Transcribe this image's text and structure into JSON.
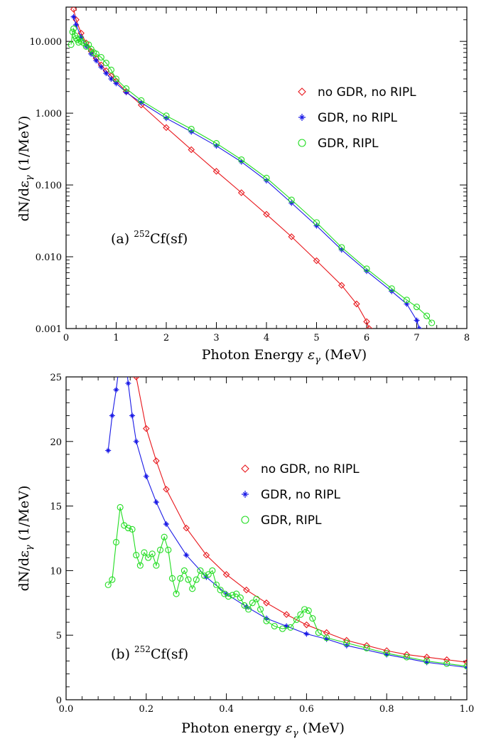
{
  "figure": {
    "panels": [
      {
        "id": "a",
        "label": "(a) ",
        "label_sup": "252",
        "label_suffix": "Cf(sf)",
        "xlabel_main": "Photon Energy ",
        "xlabel_sym": "ε",
        "xlabel_sub": "γ",
        "xlabel_unit": " (MeV)",
        "ylabel_main": "dN/dε",
        "ylabel_sub": "γ",
        "ylabel_unit": " (1/MeV)"
      },
      {
        "id": "b",
        "label": "(b) ",
        "label_sup": "252",
        "label_suffix": "Cf(sf)",
        "xlabel_main": "Photon energy ",
        "xlabel_sym": "ε",
        "xlabel_sub": "γ",
        "xlabel_unit": " (MeV)",
        "ylabel_main": "dN/dε",
        "ylabel_sub": "γ",
        "ylabel_unit": " (1/MeV)"
      }
    ]
  },
  "chart_data": [
    {
      "type": "line",
      "panel": "a",
      "xscale": "linear",
      "yscale": "log",
      "xlim": [
        0,
        8
      ],
      "ylim": [
        0.001,
        30
      ],
      "xticks": [
        0,
        1,
        2,
        3,
        4,
        5,
        6,
        7,
        8
      ],
      "xtick_labels": [
        "0",
        "1",
        "2",
        "3",
        "4",
        "5",
        "6",
        "7",
        "8"
      ],
      "yticks": [
        0.001,
        0.01,
        0.1,
        1,
        10
      ],
      "ytick_labels": [
        "0.001",
        "0.010",
        "0.100",
        "1.000",
        "10.000"
      ],
      "legend_position": "right",
      "series": [
        {
          "name": "no GDR, no RIPL",
          "color": "#e8161b",
          "marker": "diamond",
          "x": [
            0.15,
            0.2,
            0.3,
            0.4,
            0.5,
            0.6,
            0.7,
            0.8,
            0.9,
            1.0,
            1.2,
            1.5,
            2.0,
            2.5,
            3.0,
            3.5,
            4.0,
            4.5,
            5.0,
            5.5,
            5.8,
            6.0,
            6.05
          ],
          "y": [
            28,
            20,
            13,
            9.5,
            7.3,
            5.8,
            4.7,
            3.9,
            3.3,
            2.8,
            2.0,
            1.3,
            0.63,
            0.31,
            0.155,
            0.078,
            0.039,
            0.019,
            0.0088,
            0.004,
            0.0022,
            0.00125,
            0.001
          ]
        },
        {
          "name": "GDR, no RIPL",
          "color": "#1a1ae6",
          "marker": "star",
          "x": [
            0.15,
            0.2,
            0.3,
            0.4,
            0.5,
            0.6,
            0.7,
            0.8,
            0.9,
            1.0,
            1.2,
            1.5,
            2.0,
            2.5,
            3.0,
            3.5,
            4.0,
            4.5,
            5.0,
            5.5,
            6.0,
            6.5,
            6.8,
            7.0,
            7.05
          ],
          "y": [
            22,
            17,
            11.5,
            8.6,
            6.7,
            5.4,
            4.4,
            3.6,
            3.0,
            2.6,
            1.95,
            1.4,
            0.85,
            0.55,
            0.35,
            0.21,
            0.115,
            0.056,
            0.027,
            0.0125,
            0.0063,
            0.0033,
            0.0022,
            0.0013,
            0.001
          ]
        },
        {
          "name": "GDR, RIPL",
          "color": "#22dd22",
          "marker": "circle",
          "x": [
            0.1,
            0.13,
            0.15,
            0.18,
            0.2,
            0.23,
            0.25,
            0.28,
            0.3,
            0.35,
            0.4,
            0.45,
            0.5,
            0.55,
            0.6,
            0.7,
            0.8,
            0.9,
            1.0,
            1.2,
            1.5,
            2.0,
            2.5,
            3.0,
            3.5,
            4.0,
            4.5,
            5.0,
            5.5,
            6.0,
            6.5,
            6.8,
            7.0,
            7.2,
            7.3
          ],
          "y": [
            9,
            13.5,
            15,
            12,
            11,
            10.5,
            9.7,
            11,
            10,
            9.5,
            8.5,
            9,
            7.8,
            7,
            6.7,
            6,
            5,
            4,
            3,
            2.2,
            1.5,
            0.92,
            0.6,
            0.38,
            0.225,
            0.125,
            0.062,
            0.03,
            0.0135,
            0.0068,
            0.0036,
            0.0025,
            0.002,
            0.0015,
            0.0012
          ]
        }
      ]
    },
    {
      "type": "line",
      "panel": "b",
      "xscale": "linear",
      "yscale": "linear",
      "xlim": [
        0,
        1.0
      ],
      "ylim": [
        0,
        25
      ],
      "xticks": [
        0,
        0.2,
        0.4,
        0.6,
        0.8,
        1.0
      ],
      "xtick_labels": [
        "0.0",
        "0.2",
        "0.4",
        "0.6",
        "0.8",
        "1.0"
      ],
      "yticks": [
        0,
        5,
        10,
        15,
        20,
        25
      ],
      "ytick_labels": [
        "0",
        "5",
        "10",
        "15",
        "20",
        "25"
      ],
      "legend_position": "right",
      "series": [
        {
          "name": "no GDR, no RIPL",
          "color": "#e8161b",
          "marker": "diamond",
          "x": [
            0.175,
            0.2,
            0.225,
            0.25,
            0.3,
            0.35,
            0.4,
            0.45,
            0.5,
            0.55,
            0.6,
            0.65,
            0.7,
            0.75,
            0.8,
            0.85,
            0.9,
            0.95,
            1.0
          ],
          "y": [
            25,
            21,
            18.5,
            16.3,
            13.3,
            11.2,
            9.7,
            8.5,
            7.5,
            6.6,
            5.8,
            5.2,
            4.6,
            4.2,
            3.8,
            3.5,
            3.3,
            3.1,
            2.9
          ]
        },
        {
          "name": "GDR, no RIPL",
          "color": "#1a1ae6",
          "marker": "star",
          "x": [
            0.105,
            0.115,
            0.125,
            0.135,
            0.145,
            0.155,
            0.165,
            0.175,
            0.2,
            0.225,
            0.25,
            0.3,
            0.35,
            0.4,
            0.45,
            0.5,
            0.55,
            0.6,
            0.65,
            0.7,
            0.8,
            0.9,
            1.0
          ],
          "y": [
            19.3,
            22,
            24,
            26.5,
            27.5,
            24.5,
            22,
            20,
            17.3,
            15.3,
            13.6,
            11.2,
            9.5,
            8.2,
            7.2,
            6.3,
            5.7,
            5.1,
            4.7,
            4.2,
            3.5,
            2.9,
            2.5
          ]
        },
        {
          "name": "GDR, RIPL",
          "color": "#22dd22",
          "marker": "circle",
          "x": [
            0.105,
            0.115,
            0.125,
            0.135,
            0.145,
            0.155,
            0.165,
            0.175,
            0.185,
            0.195,
            0.205,
            0.215,
            0.225,
            0.235,
            0.245,
            0.255,
            0.265,
            0.275,
            0.285,
            0.295,
            0.305,
            0.315,
            0.325,
            0.335,
            0.345,
            0.355,
            0.365,
            0.375,
            0.385,
            0.395,
            0.405,
            0.415,
            0.425,
            0.435,
            0.445,
            0.455,
            0.465,
            0.475,
            0.485,
            0.5,
            0.52,
            0.54,
            0.56,
            0.575,
            0.585,
            0.595,
            0.605,
            0.615,
            0.63,
            0.65,
            0.7,
            0.75,
            0.8,
            0.85,
            0.9,
            0.95,
            1.0
          ],
          "y": [
            8.9,
            9.3,
            12.2,
            14.9,
            13.5,
            13.3,
            13.2,
            11.2,
            10.4,
            11.4,
            11.0,
            11.3,
            10.4,
            11.6,
            12.6,
            11.6,
            9.4,
            8.2,
            9.4,
            10.0,
            9.3,
            8.6,
            9.3,
            10.0,
            9.6,
            9.7,
            10.0,
            8.9,
            8.5,
            8.2,
            8.0,
            8.1,
            8.2,
            7.9,
            7.3,
            7.0,
            7.5,
            7.8,
            7.0,
            6.1,
            5.7,
            5.5,
            5.6,
            6.2,
            6.6,
            7.0,
            6.9,
            6.3,
            5.2,
            4.8,
            4.4,
            4.0,
            3.6,
            3.3,
            3.0,
            2.8,
            2.6
          ]
        }
      ]
    }
  ]
}
